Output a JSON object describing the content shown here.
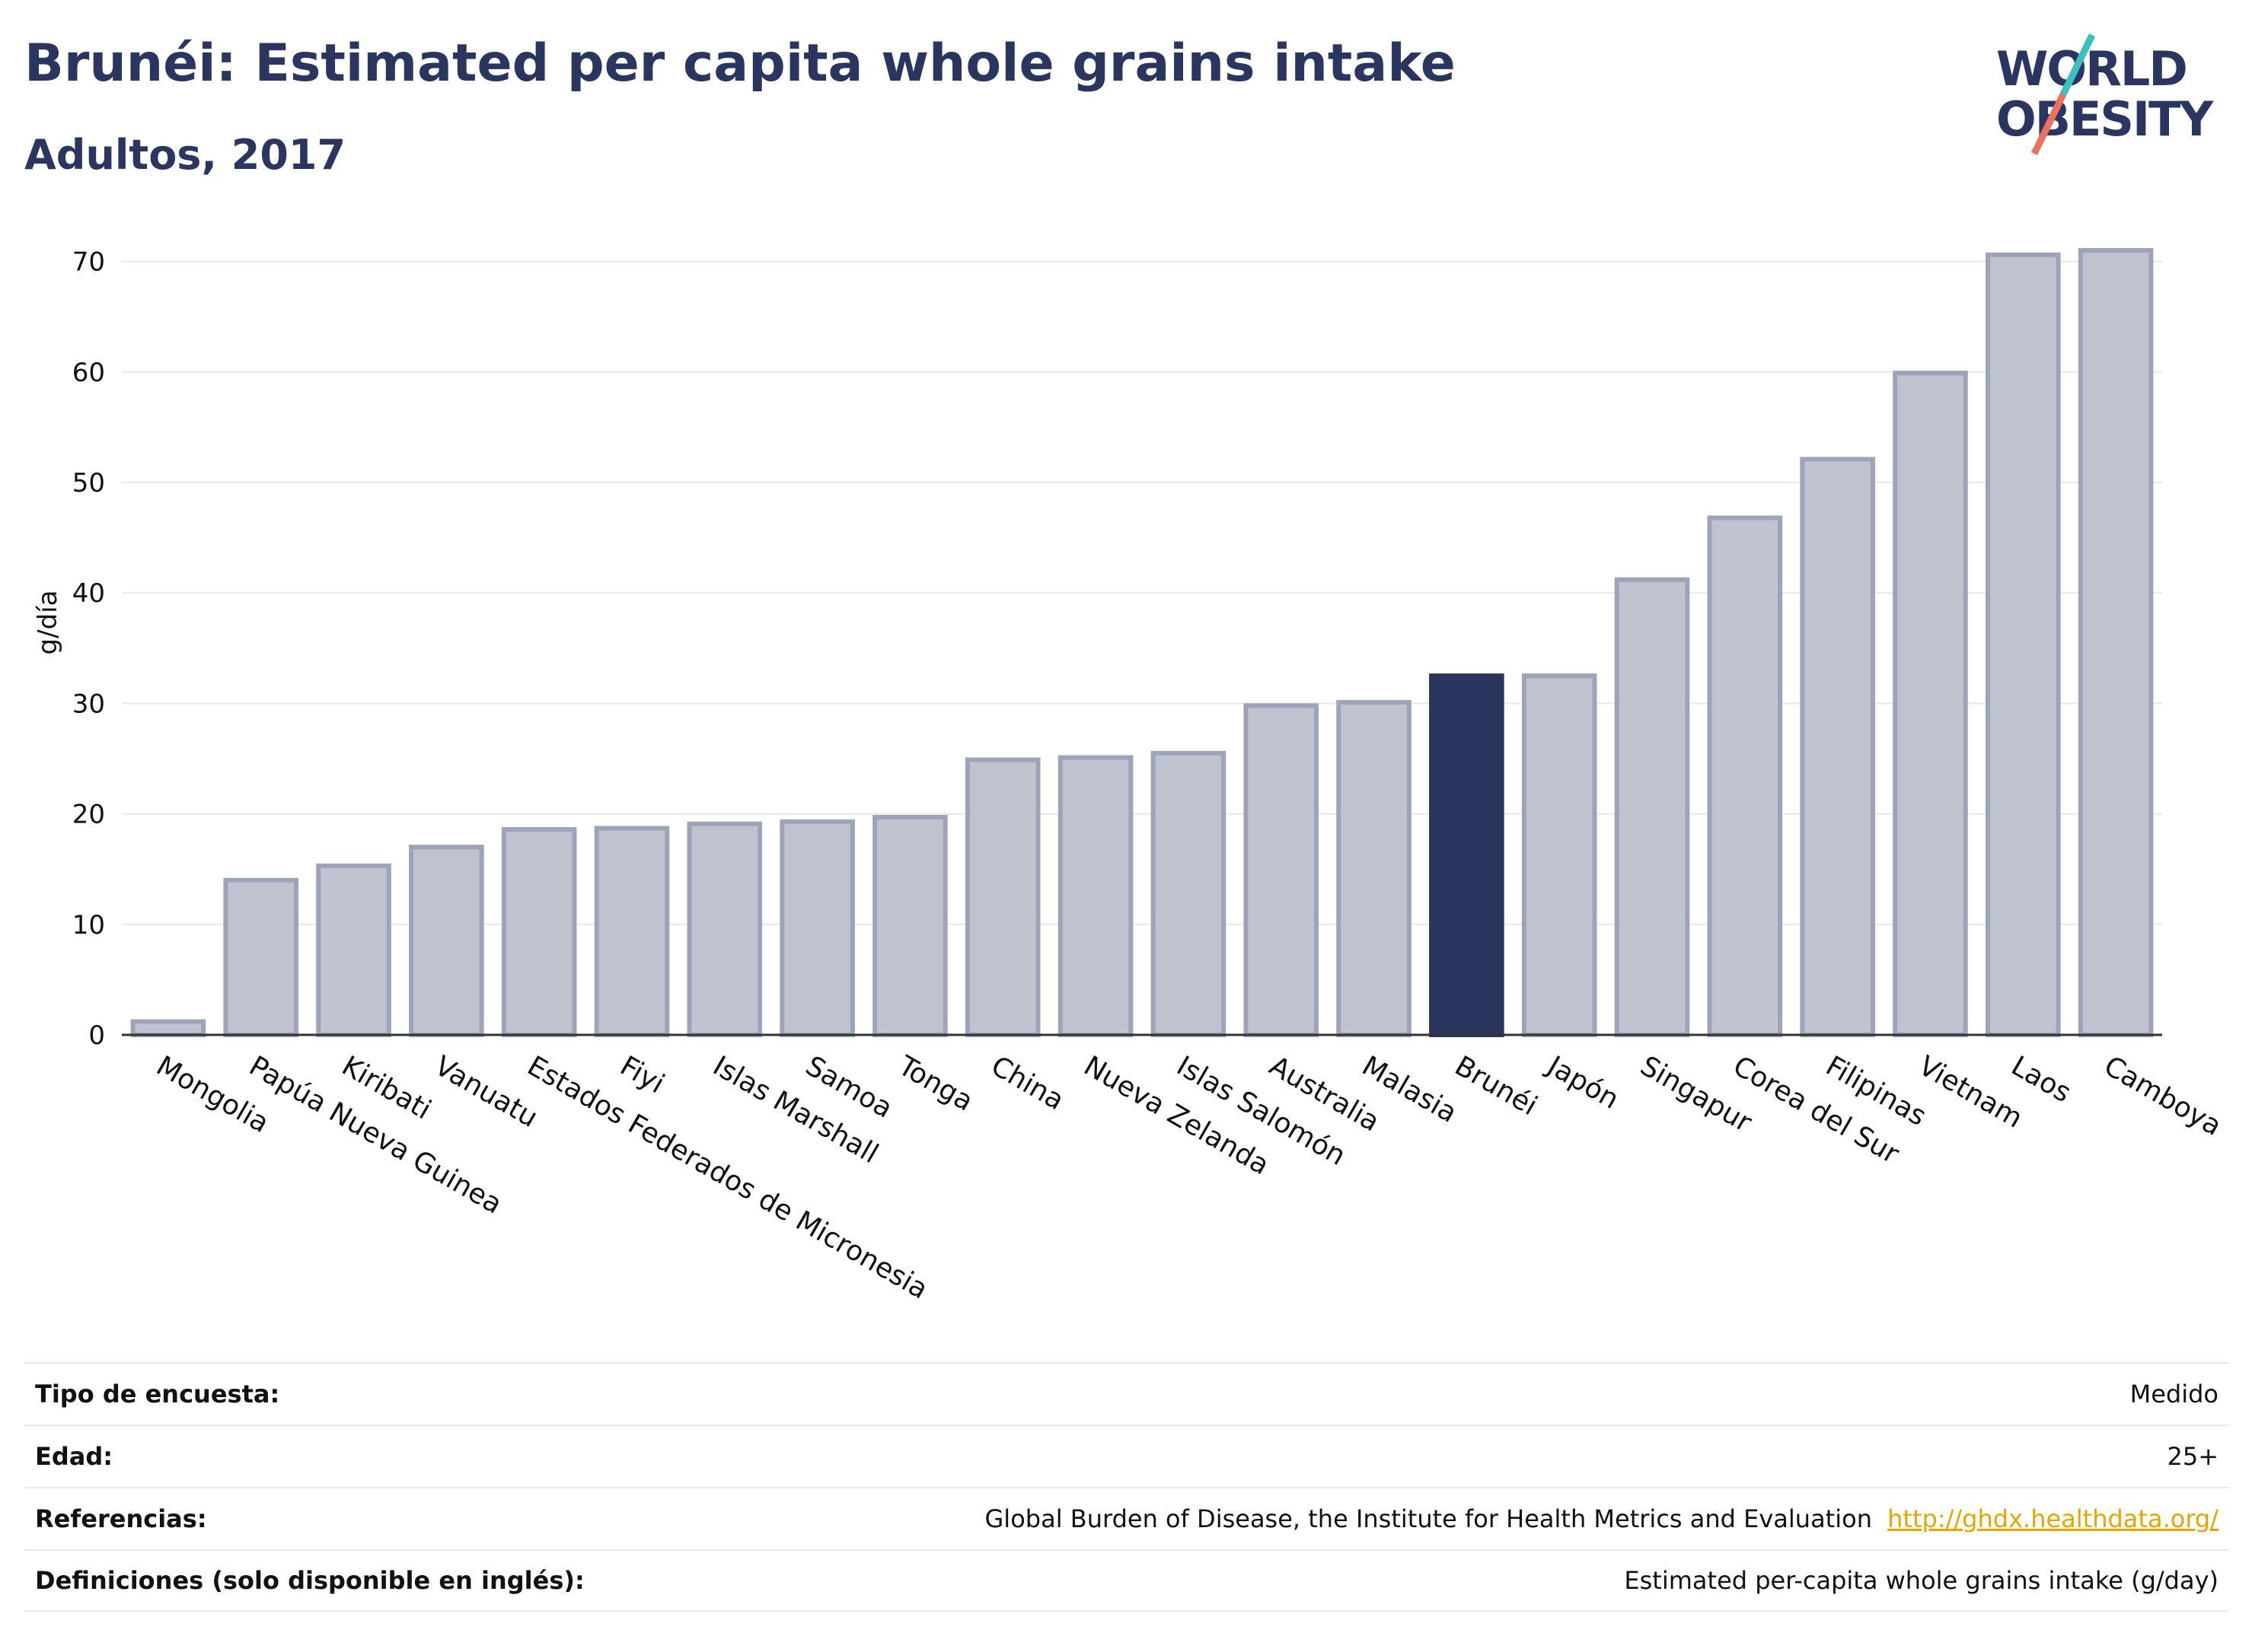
{
  "header": {
    "title": "Brunéi: Estimated per capita whole grains intake",
    "subtitle": "Adultos, 2017"
  },
  "logo": {
    "line1": "WORLD",
    "line2": "OBESITY",
    "text_color": "#2a3560",
    "slash_colors": [
      "#3bbfbf",
      "#e8725e"
    ]
  },
  "colors": {
    "bar_default": "#c0c3cf",
    "bar_border": "#9da3b8",
    "bar_highlight": "#2a3560",
    "grid": "#e6e8ec",
    "axis": "#333333"
  },
  "chart_data": {
    "type": "bar",
    "ylabel": "g/día",
    "ylim": [
      0,
      73
    ],
    "yticks": [
      0,
      10,
      20,
      30,
      40,
      50,
      60,
      70
    ],
    "grid": true,
    "highlight": "Brunéi",
    "categories": [
      "Mongolia",
      "Papúa Nueva Guinea",
      "Kiribati",
      "Vanuatu",
      "Estados Federados de Micronesia",
      "Fiyi",
      "Islas Marshall",
      "Samoa",
      "Tonga",
      "China",
      "Nueva Zelanda",
      "Islas Salomón",
      "Australia",
      "Malasia",
      "Brunéi",
      "Japón",
      "Singapur",
      "Corea del Sur",
      "Filipinas",
      "Vietnam",
      "Laos",
      "Camboya"
    ],
    "values": [
      1.2,
      14.0,
      15.3,
      17.0,
      18.6,
      18.7,
      19.1,
      19.3,
      19.7,
      24.9,
      25.1,
      25.5,
      29.8,
      30.1,
      32.5,
      32.5,
      41.2,
      46.8,
      52.1,
      59.9,
      70.6,
      71.0
    ]
  },
  "info": {
    "rows": [
      {
        "label": "Tipo de encuesta:",
        "value": "Medido"
      },
      {
        "label": "Edad:",
        "value": "25+"
      },
      {
        "label": "Referencias:",
        "value": "Global Burden of Disease, the Institute for Health Metrics and Evaluation",
        "link": "http://ghdx.healthdata.org/"
      },
      {
        "label": "Definiciones (solo disponible en inglés):",
        "value": "Estimated per-capita whole grains intake (g/day)"
      }
    ]
  }
}
